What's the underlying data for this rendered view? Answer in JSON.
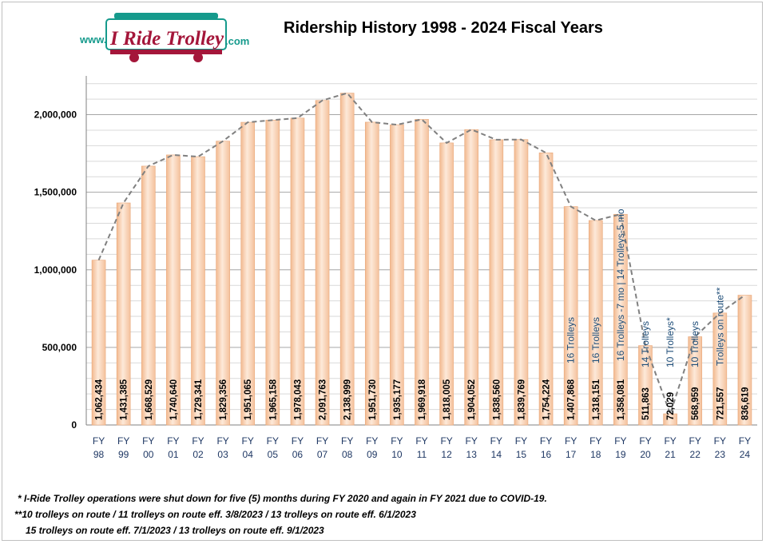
{
  "logo": {
    "prefix": "www.",
    "brand": "I Ride Trolley",
    "suffix": ".com"
  },
  "title": "Ridership History 1998 - 2024 Fiscal Years",
  "colors": {
    "bar_fill": "#fcd5b4",
    "bar_edge": "#e9a87a",
    "trend": "#808080",
    "note_text": "#1f4e79",
    "label_text": "#1f3864",
    "logo_teal": "#159a8c",
    "logo_red": "#a4163a"
  },
  "chart_data": {
    "type": "bar",
    "title": "Ridership History 1998 - 2024 Fiscal Years",
    "categories": [
      "FY 98",
      "FY 99",
      "FY 00",
      "FY 01",
      "FY 02",
      "FY 03",
      "FY 04",
      "FY 05",
      "FY 06",
      "FY 07",
      "FY 08",
      "FY 09",
      "FY 10",
      "FY 11",
      "FY 12",
      "FY 13",
      "FY 14",
      "FY 15",
      "FY 16",
      "FY 17",
      "FY 18",
      "FY 19",
      "FY 20",
      "FY 21",
      "FY 22",
      "FY 23",
      "FY 24"
    ],
    "values": [
      1062434,
      1431385,
      1668529,
      1740640,
      1729341,
      1829356,
      1951065,
      1965158,
      1978043,
      2091763,
      2138999,
      1951730,
      1935177,
      1969918,
      1818005,
      1904052,
      1838560,
      1839769,
      1754224,
      1407868,
      1318151,
      1358081,
      511863,
      72029,
      568959,
      721557,
      836619
    ],
    "value_labels": [
      "1,062,434",
      "1,431,385",
      "1,668,529",
      "1,740,640",
      "1,729,341",
      "1,829,356",
      "1,951,065",
      "1,965,158",
      "1,978,043",
      "2,091,763",
      "2,138,999",
      "1,951,730",
      "1,935,177",
      "1,969,918",
      "1,818,005",
      "1,904,052",
      "1,838,560",
      "1,839,769",
      "1,754,224",
      "1,407,868",
      "1,318,151",
      "1,358,081",
      "511,863",
      "72,029",
      "568,959",
      "721,557",
      "836,619"
    ],
    "ylim": [
      0,
      2250000
    ],
    "yticks": [
      0,
      500000,
      1000000,
      1500000,
      2000000
    ],
    "ytick_labels": [
      "0",
      "500,000",
      "1,000,000",
      "1,500,000",
      "2,000,000"
    ],
    "grid": true,
    "trendline": "dashed",
    "annotations": [
      {
        "category": "FY 17",
        "text": "16 Trolleys"
      },
      {
        "category": "FY 18",
        "text": "16 Trolleys"
      },
      {
        "category": "FY 19",
        "text": "16 Trolleys -7 mo | 14 Trolleys-5 mo"
      },
      {
        "category": "FY 20",
        "text": "14 Trolleys"
      },
      {
        "category": "FY 21",
        "text": "10 Trolleys*"
      },
      {
        "category": "FY 22",
        "text": "10 Trolleys"
      },
      {
        "category": "FY 23",
        "text": "Trolleys on route**"
      }
    ],
    "xlabel": "",
    "ylabel": ""
  },
  "footnotes": [
    "* I-Ride Trolley operations were shut down for five (5) months during FY 2020  and again in FY 2021 due to COVID-19.",
    "**10 trolleys on route / 11 trolleys on route eff. 3/8/2023 / 13 trolleys on route eff. 6/1/2023",
    "15 trolleys on route eff. 7/1/2023 / 13 trolleys on route eff. 9/1/2023"
  ]
}
